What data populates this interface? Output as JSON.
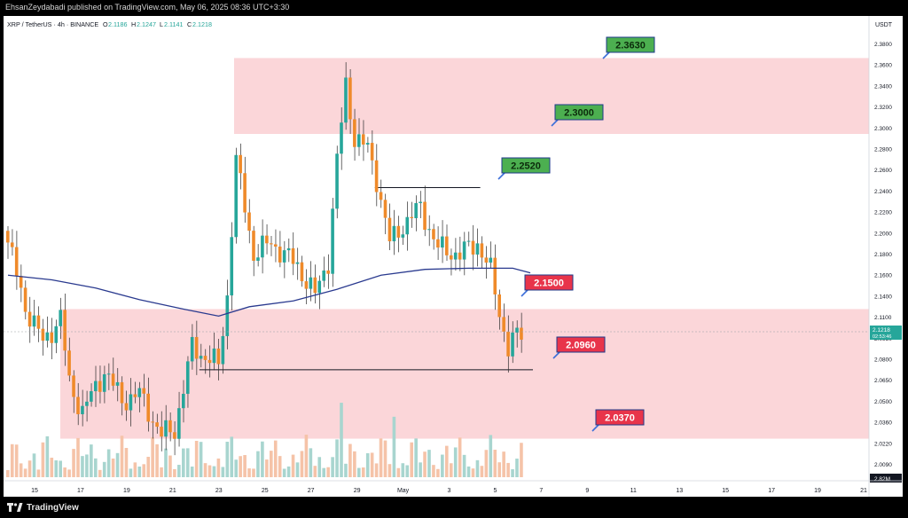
{
  "credit": "EhsanZeydabadi published on TradingView.com, May 06, 2025 08:36 UTC+3:30",
  "legend": {
    "symbol": "XRP / TetherUS · 4h · BINANCE",
    "open_label": "O",
    "open_value": "2.1186",
    "high_label": "H",
    "high_value": "2.1247",
    "low_label": "L",
    "low_value": "2.1141",
    "close_label": "C",
    "close_value": "2.1218"
  },
  "currency": "USDT",
  "brand": "TradingView",
  "current_price": {
    "value": "2.1218",
    "countdown": "02:53:46",
    "level": 2.1218
  },
  "volume_label": "2.82M",
  "colors": {
    "up": "#26a69a",
    "down": "#ef8a2a",
    "zone": "#fbd6d9",
    "ma": "#2a3a8f",
    "target_box": "#4caf50",
    "support_box": "#e8344a"
  },
  "chart_data": {
    "type": "candlestick",
    "ylim": [
      2.004,
      2.396
    ],
    "y_ticks": [
      "2.3800",
      "2.3600",
      "2.3400",
      "2.3200",
      "2.3000",
      "2.2800",
      "2.2600",
      "2.2400",
      "2.2200",
      "2.2000",
      "2.1800",
      "2.1600",
      "2.1400",
      "2.1100",
      "2.0950",
      "2.0800",
      "2.0650",
      "2.0500",
      "2.0360",
      "2.0220",
      "2.0090"
    ],
    "x_ticks": [
      "15",
      "17",
      "19",
      "21",
      "23",
      "25",
      "27",
      "29",
      "May",
      "3",
      "5",
      "7",
      "9",
      "11",
      "13",
      "15",
      "17",
      "19",
      "21"
    ],
    "zones": [
      {
        "from": 2.298,
        "to": 2.363
      },
      {
        "from": 2.037,
        "to": 2.148
      }
    ],
    "levels": [
      {
        "label": "2.3630",
        "value": 2.363,
        "kind": "target"
      },
      {
        "label": "2.3000",
        "value": 2.3,
        "kind": "target"
      },
      {
        "label": "2.2520",
        "value": 2.252,
        "kind": "target"
      },
      {
        "label": "2.1500",
        "value": 2.15,
        "kind": "support"
      },
      {
        "label": "2.0960",
        "value": 2.096,
        "kind": "support"
      },
      {
        "label": "2.0370",
        "value": 2.037,
        "kind": "support"
      }
    ],
    "horizontal_lines": [
      {
        "value": 2.252,
        "from_bar": 84,
        "to_bar": 108
      },
      {
        "value": 2.096,
        "from_bar": 44,
        "to_bar": 120
      }
    ],
    "moving_average": [
      {
        "bar": 0,
        "value": 2.177
      },
      {
        "bar": 10,
        "value": 2.173
      },
      {
        "bar": 20,
        "value": 2.166
      },
      {
        "bar": 30,
        "value": 2.156
      },
      {
        "bar": 40,
        "value": 2.148
      },
      {
        "bar": 48,
        "value": 2.142
      },
      {
        "bar": 55,
        "value": 2.15
      },
      {
        "bar": 65,
        "value": 2.155
      },
      {
        "bar": 75,
        "value": 2.165
      },
      {
        "bar": 85,
        "value": 2.177
      },
      {
        "bar": 95,
        "value": 2.182
      },
      {
        "bar": 105,
        "value": 2.183
      },
      {
        "bar": 115,
        "value": 2.183
      },
      {
        "bar": 119,
        "value": 2.179
      }
    ],
    "anchors": [
      [
        0,
        2.205
      ],
      [
        4,
        2.15
      ],
      [
        8,
        2.12
      ],
      [
        12,
        2.14
      ],
      [
        14,
        2.085
      ],
      [
        17,
        2.06
      ],
      [
        22,
        2.095
      ],
      [
        26,
        2.07
      ],
      [
        30,
        2.075
      ],
      [
        35,
        2.04
      ],
      [
        38,
        2.045
      ],
      [
        42,
        2.115
      ],
      [
        46,
        2.105
      ],
      [
        48,
        2.1
      ],
      [
        50,
        2.16
      ],
      [
        52,
        2.275
      ],
      [
        56,
        2.195
      ],
      [
        60,
        2.205
      ],
      [
        66,
        2.185
      ],
      [
        70,
        2.16
      ],
      [
        73,
        2.19
      ],
      [
        75,
        2.275
      ],
      [
        77,
        2.34
      ],
      [
        79,
        2.295
      ],
      [
        82,
        2.285
      ],
      [
        84,
        2.26
      ],
      [
        87,
        2.205
      ],
      [
        90,
        2.22
      ],
      [
        94,
        2.235
      ],
      [
        98,
        2.2
      ],
      [
        103,
        2.195
      ],
      [
        107,
        2.205
      ],
      [
        110,
        2.18
      ],
      [
        112,
        2.145
      ],
      [
        114,
        2.115
      ],
      [
        116,
        2.125
      ],
      [
        117,
        2.1218
      ]
    ],
    "volume_max": "2.82M"
  }
}
